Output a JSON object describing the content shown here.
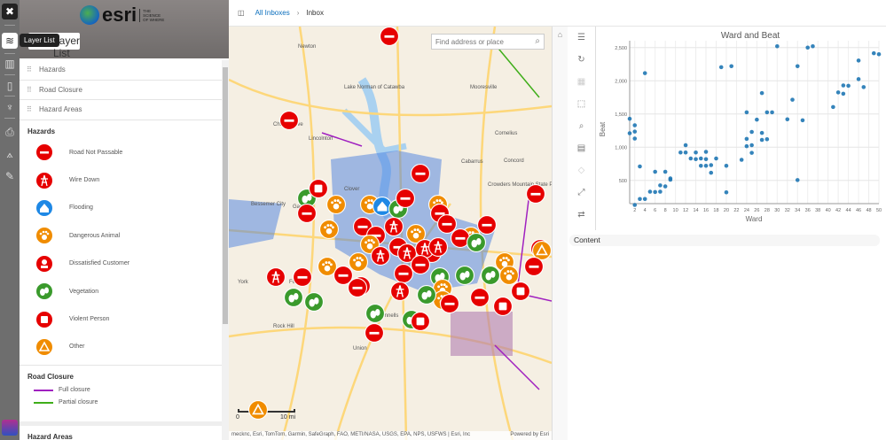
{
  "iconbar": {
    "items": [
      "app-icon",
      "layers-icon",
      "basemap-icon",
      "bookmark-icon",
      "legend-icon",
      "print-icon",
      "measure-icon",
      "edit-icon"
    ],
    "tooltip": "Layer List"
  },
  "panel": {
    "logo_text": "esri",
    "logo_tagline": "THE SCIENCE OF WHERE",
    "title": "Layer List",
    "layers": [
      "Hazards",
      "Road Closure",
      "Hazard Areas"
    ],
    "hazards_heading": "Hazards",
    "hazards": [
      {
        "label": "Road Not Passable",
        "color": "#e60000",
        "icon": "no-entry"
      },
      {
        "label": "Wire Down",
        "color": "#e60000",
        "icon": "power-tower"
      },
      {
        "label": "Flooding",
        "color": "#1e88e5",
        "icon": "house"
      },
      {
        "label": "Dangerous Animal",
        "color": "#f08c00",
        "icon": "paw"
      },
      {
        "label": "Dissatisfied Customer",
        "color": "#e60000",
        "icon": "person"
      },
      {
        "label": "Vegetation",
        "color": "#3a9a2c",
        "icon": "leaves"
      },
      {
        "label": "Violent Person",
        "color": "#e60000",
        "icon": "fist"
      },
      {
        "label": "Other",
        "color": "#f08c00",
        "icon": "warning-triangle"
      }
    ],
    "road_heading": "Road Closure",
    "road": [
      {
        "label": "Full closure",
        "color": "#a020c0"
      },
      {
        "label": "Partial closure",
        "color": "#3fae1a"
      }
    ],
    "areas_heading": "Hazard Areas"
  },
  "topbar": {
    "crumb1": "All Inboxes",
    "sep": "›",
    "crumb2": "Inbox"
  },
  "map": {
    "search_placeholder": "Find address or place",
    "places": [
      "Newton",
      "Lake Norman of Catawba",
      "Mooresville",
      "China Grove",
      "Lincolnton",
      "Cornelius",
      "Concord",
      "Cabarrus",
      "Bessemer City",
      "Gastonia",
      "Clover",
      "Crowders Mountain State Park",
      "York",
      "Fort Mill",
      "Rock Hill",
      "McConnells",
      "Union"
    ],
    "scale_start": "0",
    "scale_end": "10 mi",
    "attribution": "mecknc, Esri, TomTom, Garmin, SafeGraph, FAO, METI/NASA, USGS, EPA, NPS, USFWS | Esri, Inc",
    "powered": "Powered by Esri"
  },
  "chart_data": {
    "type": "scatter",
    "title": "Ward and Beat",
    "xlabel": "Ward",
    "ylabel": "Beat",
    "xlim": [
      1,
      50
    ],
    "ylim": [
      150,
      2550
    ],
    "grid": true,
    "color": "#1f77b4",
    "xticks": [
      2,
      4,
      6,
      8,
      10,
      12,
      14,
      16,
      18,
      20,
      22,
      24,
      26,
      28,
      30,
      32,
      34,
      36,
      38,
      40,
      42,
      44,
      46,
      48,
      50
    ],
    "yticks": [
      500,
      1000,
      1500,
      2000,
      2500
    ],
    "ytick_labels": [
      "500",
      "1,000",
      "1,500",
      "2,000",
      "2,500"
    ],
    "points": [
      [
        1,
        1428
      ],
      [
        1,
        1210
      ],
      [
        2,
        1330
      ],
      [
        2,
        1235
      ],
      [
        2,
        1130
      ],
      [
        2,
        130
      ],
      [
        3,
        710
      ],
      [
        3,
        220
      ],
      [
        4,
        2115
      ],
      [
        4,
        220
      ],
      [
        5,
        330
      ],
      [
        6,
        630
      ],
      [
        6,
        325
      ],
      [
        7,
        425
      ],
      [
        7,
        330
      ],
      [
        8,
        630
      ],
      [
        8,
        410
      ],
      [
        9,
        530
      ],
      [
        9,
        510
      ],
      [
        11,
        920
      ],
      [
        12,
        1030
      ],
      [
        12,
        920
      ],
      [
        13,
        830
      ],
      [
        14,
        920
      ],
      [
        14,
        820
      ],
      [
        15,
        830
      ],
      [
        15,
        720
      ],
      [
        16,
        930
      ],
      [
        16,
        820
      ],
      [
        16,
        720
      ],
      [
        17,
        730
      ],
      [
        17,
        615
      ],
      [
        18,
        830
      ],
      [
        19,
        2205
      ],
      [
        20,
        720
      ],
      [
        20,
        320
      ],
      [
        21,
        2220
      ],
      [
        23,
        810
      ],
      [
        24,
        1525
      ],
      [
        24,
        1125
      ],
      [
        24,
        1015
      ],
      [
        25,
        1230
      ],
      [
        25,
        1030
      ],
      [
        25,
        915
      ],
      [
        26,
        1415
      ],
      [
        27,
        1815
      ],
      [
        27,
        1215
      ],
      [
        27,
        1110
      ],
      [
        28,
        1525
      ],
      [
        28,
        1120
      ],
      [
        29,
        1525
      ],
      [
        30,
        2520
      ],
      [
        32,
        1420
      ],
      [
        33,
        1715
      ],
      [
        34,
        2220
      ],
      [
        34,
        505
      ],
      [
        35,
        1405
      ],
      [
        36,
        2500
      ],
      [
        37,
        2520
      ],
      [
        41,
        1605
      ],
      [
        42,
        1825
      ],
      [
        43,
        1930
      ],
      [
        43,
        1805
      ],
      [
        44,
        1925
      ],
      [
        46,
        2305
      ],
      [
        46,
        2025
      ],
      [
        47,
        1905
      ],
      [
        49,
        2415
      ],
      [
        50,
        2400
      ]
    ]
  },
  "content_label": "Content"
}
